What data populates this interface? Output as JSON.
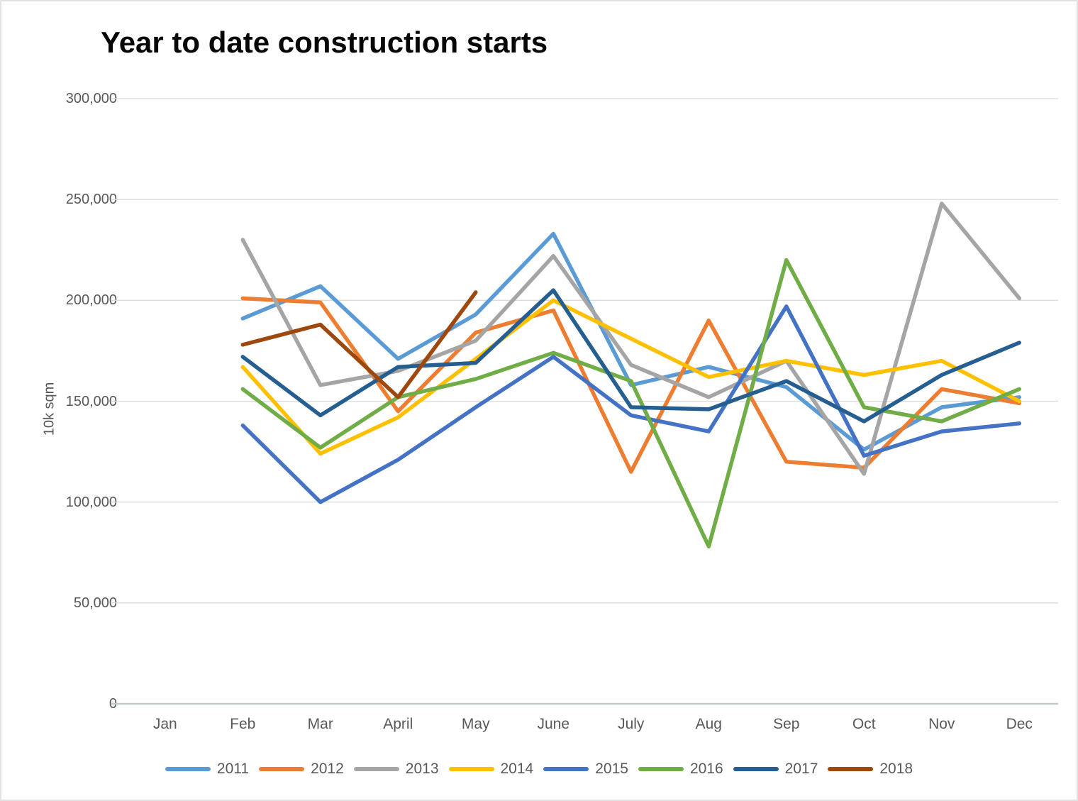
{
  "title": "Year to date construction starts",
  "chart_data": {
    "type": "line",
    "title": "Year to date construction starts",
    "xlabel": "",
    "ylabel": "10k sqm",
    "ylim": [
      0,
      300000
    ],
    "ytick_step": 50000,
    "y_tick_labels": [
      "0",
      "50,000",
      "100,000",
      "150,000",
      "200,000",
      "250,000",
      "300,000"
    ],
    "grid": true,
    "legend_position": "bottom",
    "categories": [
      "Jan",
      "Feb",
      "Mar",
      "April",
      "May",
      "June",
      "July",
      "Aug",
      "Sep",
      "Oct",
      "Nov",
      "Dec"
    ],
    "series": [
      {
        "name": "2011",
        "color": "#5B9BD5",
        "values": [
          null,
          191000,
          207000,
          171000,
          193000,
          233000,
          158000,
          167000,
          157000,
          126000,
          147000,
          152000
        ]
      },
      {
        "name": "2012",
        "color": "#ED7D31",
        "values": [
          null,
          201000,
          199000,
          145000,
          184000,
          195000,
          115000,
          190000,
          120000,
          117000,
          156000,
          149000
        ]
      },
      {
        "name": "2013",
        "color": "#A5A5A5",
        "values": [
          null,
          230000,
          158000,
          165000,
          180000,
          222000,
          168000,
          152000,
          170000,
          114000,
          248000,
          201000
        ]
      },
      {
        "name": "2014",
        "color": "#FFC000",
        "values": [
          null,
          167000,
          124000,
          142000,
          171000,
          200000,
          181000,
          162000,
          170000,
          163000,
          170000,
          150000
        ]
      },
      {
        "name": "2015",
        "color": "#4472C4",
        "values": [
          null,
          138000,
          100000,
          121000,
          147000,
          172000,
          143000,
          135000,
          197000,
          123000,
          135000,
          139000
        ]
      },
      {
        "name": "2016",
        "color": "#70AD47",
        "values": [
          null,
          156000,
          127000,
          152000,
          161000,
          174000,
          160000,
          78000,
          220000,
          147000,
          140000,
          156000
        ]
      },
      {
        "name": "2017",
        "color": "#255E91",
        "values": [
          null,
          172000,
          143000,
          167000,
          169000,
          205000,
          147000,
          146000,
          160000,
          140000,
          163000,
          179000
        ]
      },
      {
        "name": "2018",
        "color": "#9E480E",
        "values": [
          null,
          178000,
          188000,
          152000,
          204000,
          null,
          null,
          null,
          null,
          null,
          null,
          null
        ]
      }
    ],
    "gridline_color": "#DBDBDB",
    "axis_line_color": "#C2C9C2",
    "axis_text_color": "#595959"
  }
}
